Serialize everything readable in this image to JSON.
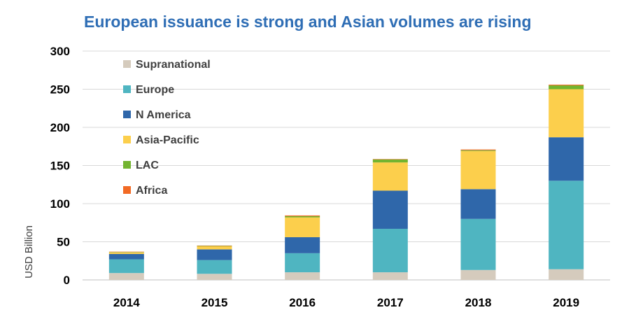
{
  "chart_data": {
    "type": "bar",
    "stacked": true,
    "title": "European issuance is strong and Asian volumes are rising",
    "ylabel": "USD Billion",
    "xlabel": "",
    "ylim": [
      0,
      300
    ],
    "yticks": [
      0,
      50,
      100,
      150,
      200,
      250,
      300
    ],
    "grid": true,
    "legend_position": "top-left",
    "categories": [
      "2014",
      "2015",
      "2016",
      "2017",
      "2018",
      "2019"
    ],
    "series": [
      {
        "name": "Supranational",
        "color": "#d5cbbd",
        "values": [
          9,
          8,
          10,
          10,
          13,
          14
        ]
      },
      {
        "name": "Europe",
        "color": "#4fb5c1",
        "values": [
          18,
          18,
          25,
          57,
          67,
          116
        ]
      },
      {
        "name": "N America",
        "color": "#2f67aa",
        "values": [
          7,
          14,
          21,
          50,
          39,
          57
        ]
      },
      {
        "name": "Asia-Pacific",
        "color": "#fccf4c",
        "values": [
          2,
          4,
          26,
          37,
          50,
          63
        ]
      },
      {
        "name": "LAC",
        "color": "#73b430",
        "values": [
          0.5,
          0.5,
          1.5,
          4,
          1,
          5
        ]
      },
      {
        "name": "Africa",
        "color": "#f26a24",
        "values": [
          0.5,
          0.5,
          1,
          0.5,
          1,
          1
        ]
      }
    ]
  }
}
